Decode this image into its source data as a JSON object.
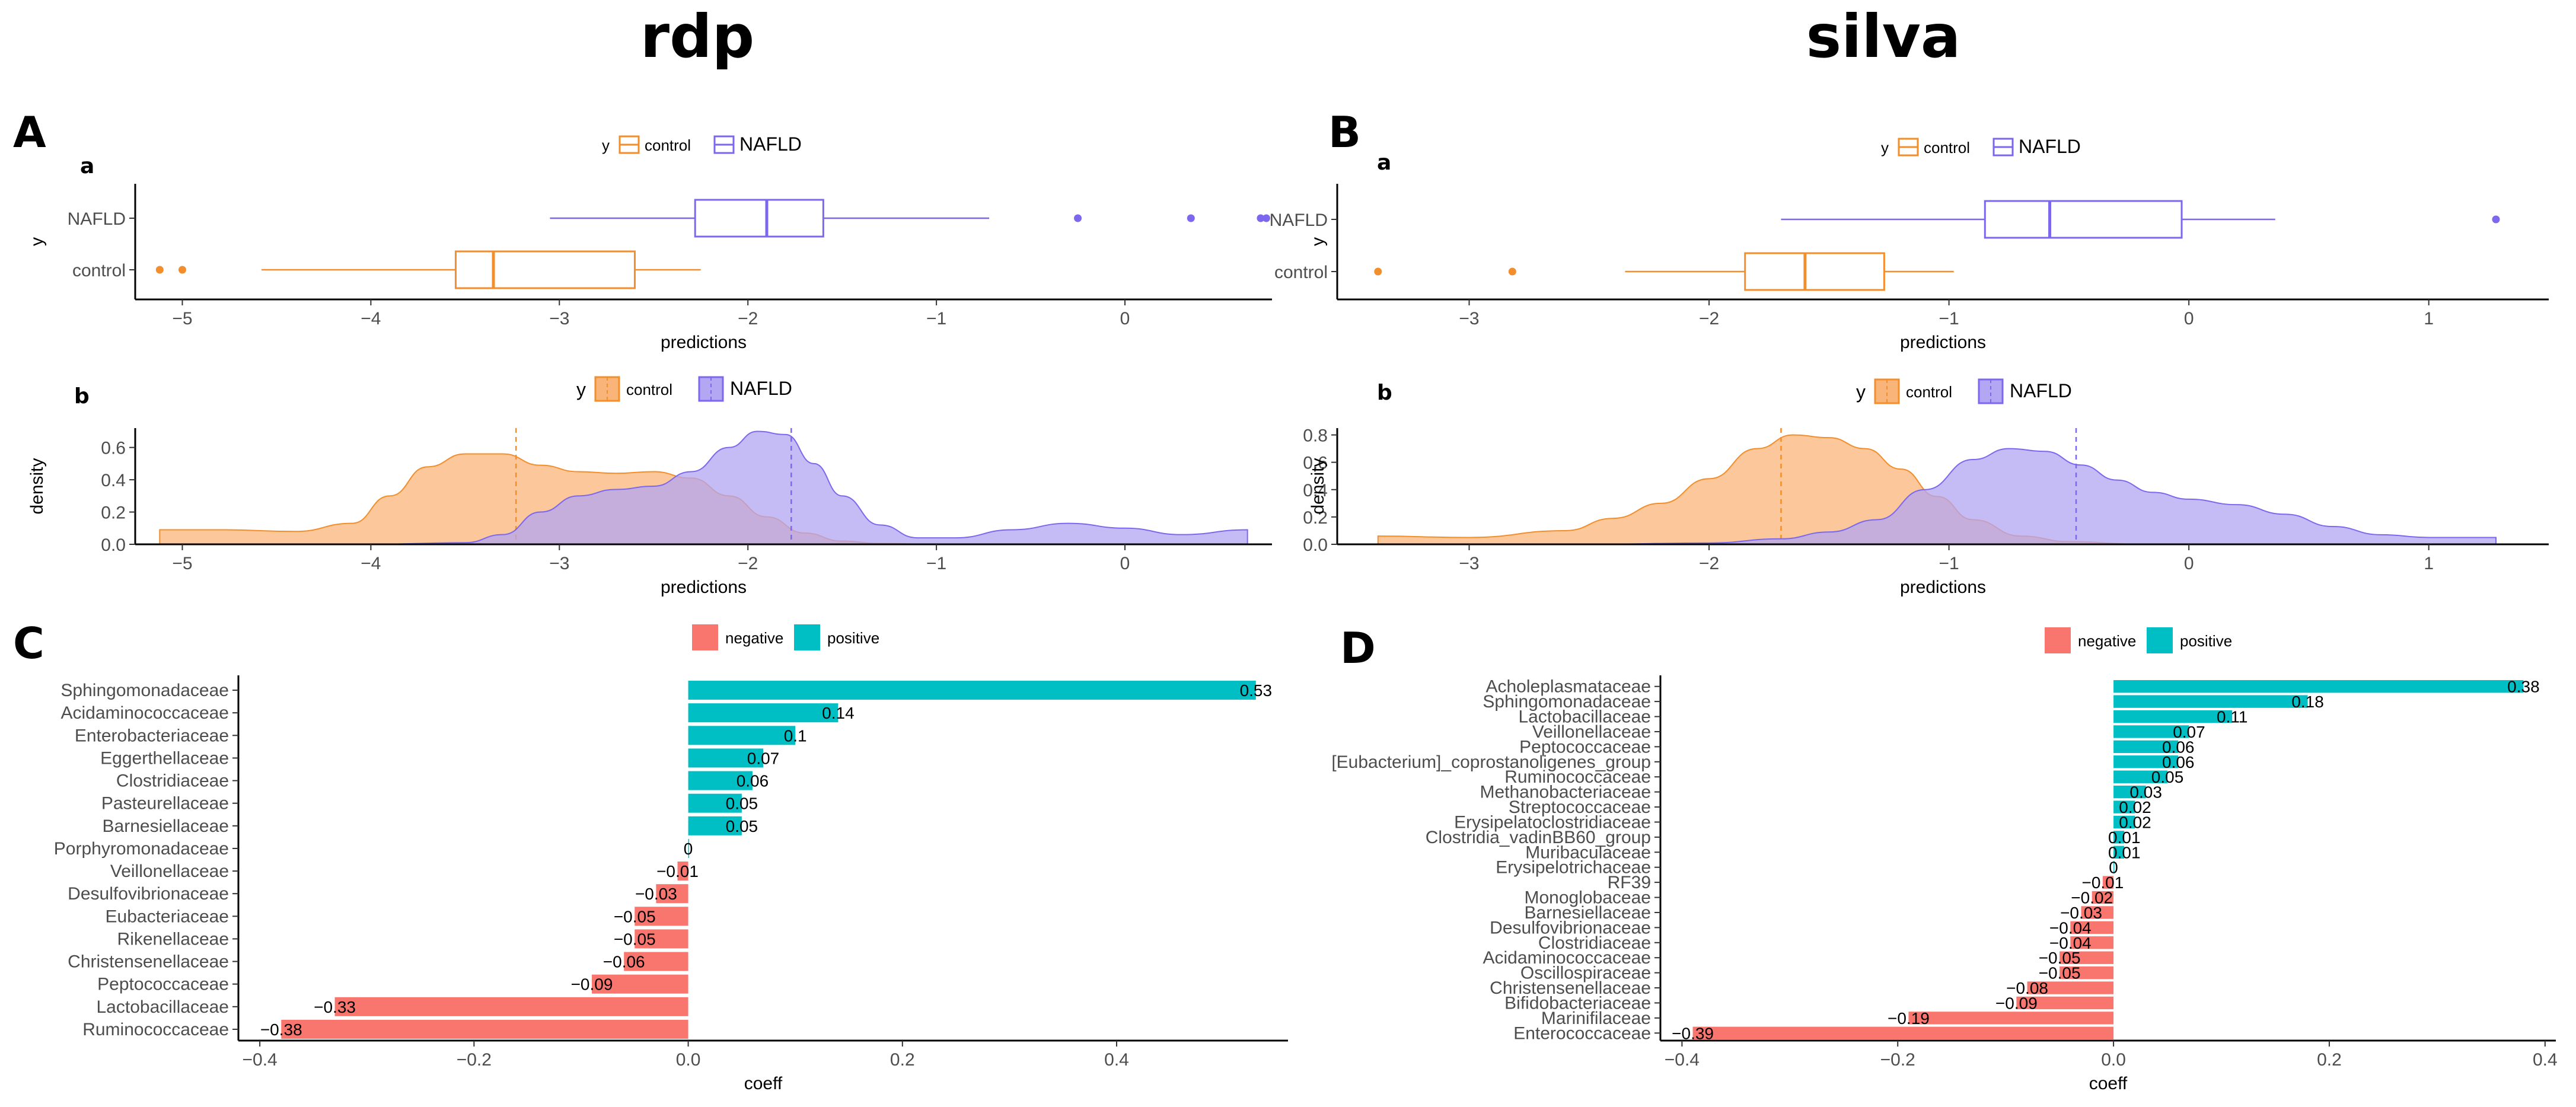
{
  "titles": {
    "rdp": "rdp",
    "silva": "silva"
  },
  "panel_letters": {
    "A": "A",
    "B": "B",
    "C": "C",
    "D": "D"
  },
  "sub_letters": {
    "a": "a",
    "b": "b"
  },
  "colors": {
    "control": "#f28e2b",
    "nafld": "#7b68ee",
    "negative": "#f8766d",
    "positive": "#00bfc4",
    "control_fill": "#f9b47a",
    "nafld_fill": "#b3a6f2"
  },
  "legends": {
    "y_title": "y",
    "control": "control",
    "nafld": "NAFLD",
    "negative": "negative",
    "positive": "positive"
  },
  "chart_data": [
    {
      "id": "A_box",
      "type": "boxplot",
      "xlabel": "predictions",
      "ylabel": "y",
      "categories": [
        "NAFLD",
        "control"
      ],
      "xlim": [
        -5.25,
        0.78
      ],
      "xticks": [
        -5,
        -4,
        -3,
        -2,
        -1,
        0
      ],
      "tick_labels": [
        "−5",
        "−4",
        "−3",
        "−2",
        "−1",
        "0"
      ],
      "series": [
        {
          "name": "NAFLD",
          "whisker_low": -3.05,
          "q1": -2.28,
          "median": -1.9,
          "q3": -1.6,
          "whisker_high": -0.72,
          "outliers": [
            -0.25,
            0.35,
            0.72,
            0.75
          ]
        },
        {
          "name": "control",
          "whisker_low": -4.58,
          "q1": -3.55,
          "median": -3.35,
          "q3": -2.6,
          "whisker_high": -2.25,
          "outliers": [
            -5.12,
            -5.0
          ]
        }
      ]
    },
    {
      "id": "A_density",
      "type": "area",
      "xlabel": "predictions",
      "ylabel": "density",
      "xlim": [
        -5.25,
        0.78
      ],
      "ylim": [
        0,
        0.72
      ],
      "xticks": [
        -5,
        -4,
        -3,
        -2,
        -1,
        0
      ],
      "tick_labels": [
        "−5",
        "−4",
        "−3",
        "−2",
        "−1",
        "0"
      ],
      "yticks": [
        0.0,
        0.2,
        0.4,
        0.6
      ],
      "ytick_labels": [
        "0.0",
        "0.2",
        "0.4",
        "0.6"
      ],
      "series": [
        {
          "name": "control",
          "mean": -3.23,
          "x": [
            -5.12,
            -4.8,
            -4.4,
            -4.1,
            -3.9,
            -3.7,
            -3.5,
            -3.3,
            -3.1,
            -2.9,
            -2.7,
            -2.5,
            -2.3,
            -2.1,
            -1.9,
            -1.7,
            -1.5,
            -1.3,
            -1.0,
            -0.6,
            0.0,
            0.65
          ],
          "y": [
            0.09,
            0.09,
            0.08,
            0.13,
            0.3,
            0.48,
            0.56,
            0.56,
            0.49,
            0.45,
            0.44,
            0.45,
            0.41,
            0.3,
            0.17,
            0.07,
            0.02,
            0.005,
            0.0,
            0.0,
            0.0,
            0.0
          ]
        },
        {
          "name": "NAFLD",
          "mean": -1.77,
          "x": [
            -5.12,
            -4.0,
            -3.5,
            -3.3,
            -3.1,
            -2.9,
            -2.7,
            -2.5,
            -2.3,
            -2.1,
            -1.95,
            -1.8,
            -1.65,
            -1.5,
            -1.3,
            -1.1,
            -0.9,
            -0.6,
            -0.3,
            0.0,
            0.3,
            0.65
          ],
          "y": [
            0.0,
            0.0,
            0.01,
            0.06,
            0.2,
            0.3,
            0.34,
            0.36,
            0.45,
            0.6,
            0.7,
            0.68,
            0.5,
            0.3,
            0.12,
            0.04,
            0.04,
            0.09,
            0.13,
            0.1,
            0.06,
            0.09
          ]
        }
      ]
    },
    {
      "id": "B_box",
      "type": "boxplot",
      "xlabel": "predictions",
      "ylabel": "y",
      "categories": [
        "NAFLD",
        "control"
      ],
      "xlim": [
        -3.55,
        1.5
      ],
      "xticks": [
        -3,
        -2,
        -1,
        0,
        1
      ],
      "tick_labels": [
        "−3",
        "−2",
        "−1",
        "0",
        "1"
      ],
      "series": [
        {
          "name": "NAFLD",
          "whisker_low": -1.7,
          "q1": -0.85,
          "median": -0.58,
          "q3": -0.03,
          "whisker_high": 0.36,
          "outliers": [
            1.28
          ]
        },
        {
          "name": "control",
          "whisker_low": -2.35,
          "q1": -1.85,
          "median": -1.6,
          "q3": -1.27,
          "whisker_high": -0.98,
          "outliers": [
            -3.38,
            -2.82
          ]
        }
      ]
    },
    {
      "id": "B_density",
      "type": "area",
      "xlabel": "predictions",
      "ylabel": "density",
      "xlim": [
        -3.55,
        1.5
      ],
      "ylim": [
        0,
        0.85
      ],
      "xticks": [
        -3,
        -2,
        -1,
        0,
        1
      ],
      "tick_labels": [
        "−3",
        "−2",
        "−1",
        "0",
        "1"
      ],
      "yticks": [
        0.0,
        0.2,
        0.4,
        0.6,
        0.8
      ],
      "ytick_labels": [
        "0.0",
        "0.2",
        "0.4",
        "0.6",
        "0.8"
      ],
      "series": [
        {
          "name": "control",
          "mean": -1.7,
          "x": [
            -3.38,
            -3.0,
            -2.6,
            -2.4,
            -2.2,
            -2.0,
            -1.8,
            -1.65,
            -1.5,
            -1.35,
            -1.2,
            -1.05,
            -0.9,
            -0.7,
            -0.5,
            -0.2,
            0.2,
            0.6,
            1.0,
            1.28
          ],
          "y": [
            0.06,
            0.05,
            0.1,
            0.19,
            0.3,
            0.48,
            0.7,
            0.8,
            0.78,
            0.7,
            0.55,
            0.35,
            0.18,
            0.06,
            0.02,
            0.0,
            0.0,
            0.0,
            0.0,
            0.0
          ]
        },
        {
          "name": "NAFLD",
          "mean": -0.47,
          "x": [
            -3.38,
            -2.5,
            -2.0,
            -1.7,
            -1.5,
            -1.3,
            -1.1,
            -0.9,
            -0.75,
            -0.6,
            -0.45,
            -0.3,
            -0.15,
            0.0,
            0.2,
            0.4,
            0.6,
            0.8,
            1.0,
            1.28
          ],
          "y": [
            0.0,
            0.0,
            0.01,
            0.04,
            0.09,
            0.18,
            0.4,
            0.62,
            0.7,
            0.68,
            0.58,
            0.47,
            0.38,
            0.33,
            0.29,
            0.22,
            0.13,
            0.07,
            0.05,
            0.05
          ]
        }
      ]
    },
    {
      "id": "C_bar",
      "type": "bar",
      "orientation": "horizontal",
      "xlabel": "coeff",
      "xlim": [
        -0.42,
        0.56
      ],
      "xticks": [
        -0.4,
        -0.2,
        0.0,
        0.2,
        0.4
      ],
      "tick_labels": [
        "−0.4",
        "−0.2",
        "0.0",
        "0.2",
        "0.4"
      ],
      "categories": [
        "Sphingomonadaceae",
        "Acidaminococcaceae",
        "Enterobacteriaceae",
        "Eggerthellaceae",
        "Clostridiaceae",
        "Pasteurellaceae",
        "Barnesiellaceae",
        "Porphyromonadaceae",
        "Veillonellaceae",
        "Desulfovibrionaceae",
        "Eubacteriaceae",
        "Rikenellaceae",
        "Christensenellaceae",
        "Peptococcaceae",
        "Lactobacillaceae",
        "Ruminococcaceae"
      ],
      "values": [
        0.53,
        0.14,
        0.1,
        0.07,
        0.06,
        0.05,
        0.05,
        0.0,
        -0.01,
        -0.03,
        -0.05,
        -0.05,
        -0.06,
        -0.09,
        -0.33,
        -0.38
      ],
      "labels": [
        "0.53",
        "0.14",
        "0.1",
        "0.07",
        "0.06",
        "0.05",
        "0.05",
        "0",
        "−0.01",
        "−0.03",
        "−0.05",
        "−0.05",
        "−0.06",
        "−0.09",
        "−0.33",
        "−0.38"
      ]
    },
    {
      "id": "D_bar",
      "type": "bar",
      "orientation": "horizontal",
      "xlabel": "coeff",
      "xlim": [
        -0.42,
        0.41
      ],
      "xticks": [
        -0.4,
        -0.2,
        0.0,
        0.2,
        0.4
      ],
      "tick_labels": [
        "−0.4",
        "−0.2",
        "0.0",
        "0.2",
        "0.4"
      ],
      "categories": [
        "Acholeplasmataceae",
        "Sphingomonadaceae",
        "Lactobacillaceae",
        "Veillonellaceae",
        "Peptococcaceae",
        "[Eubacterium]_coprostanoligenes_group",
        "Ruminococcaceae",
        "Methanobacteriaceae",
        "Streptococcaceae",
        "Erysipelatoclostridiaceae",
        "Clostridia_vadinBB60_group",
        "Muribaculaceae",
        "Erysipelotrichaceae",
        "RF39",
        "Monoglobaceae",
        "Barnesiellaceae",
        "Desulfovibrionaceae",
        "Clostridiaceae",
        "Acidaminococcaceae",
        "Oscillospiraceae",
        "Christensenellaceae",
        "Bifidobacteriaceae",
        "Marinifilaceae",
        "Enterococcaceae"
      ],
      "values": [
        0.38,
        0.18,
        0.11,
        0.07,
        0.06,
        0.06,
        0.05,
        0.03,
        0.02,
        0.02,
        0.01,
        0.01,
        0.0,
        -0.01,
        -0.02,
        -0.03,
        -0.04,
        -0.04,
        -0.05,
        -0.05,
        -0.08,
        -0.09,
        -0.19,
        -0.39
      ],
      "labels": [
        "0.38",
        "0.18",
        "0.11",
        "0.07",
        "0.06",
        "0.06",
        "0.05",
        "0.03",
        "0.02",
        "0.02",
        "0.01",
        "0.01",
        "0",
        "−0.01",
        "−0.02",
        "−0.03",
        "−0.04",
        "−0.04",
        "−0.05",
        "−0.05",
        "−0.08",
        "−0.09",
        "−0.19",
        "−0.39"
      ]
    }
  ]
}
